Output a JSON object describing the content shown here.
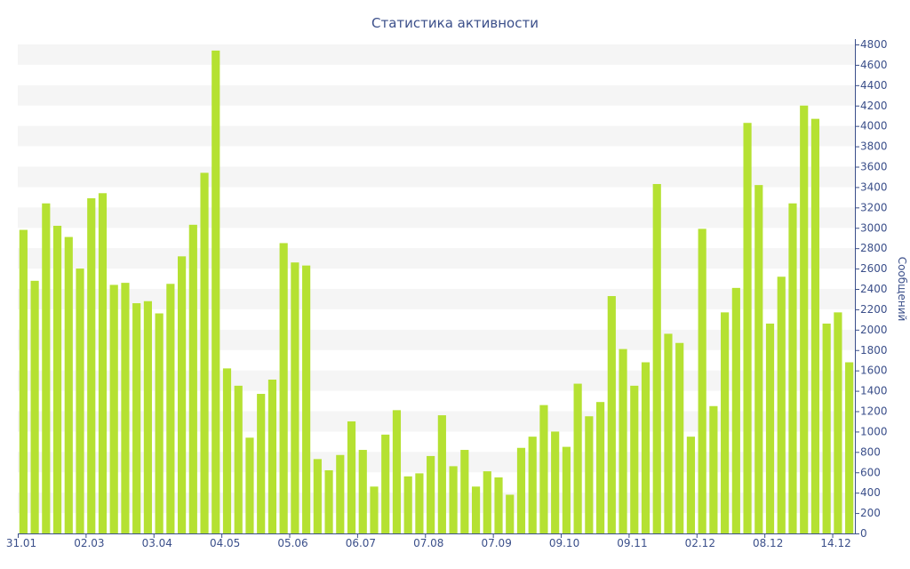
{
  "chart_data": {
    "type": "bar",
    "title": "Статистика активности",
    "ylabel": "Сообщений",
    "xlabel": "",
    "ylim": [
      0,
      4800
    ],
    "y_ticks": [
      0,
      200,
      400,
      600,
      800,
      1000,
      1200,
      1400,
      1600,
      1800,
      2000,
      2200,
      2400,
      2600,
      2800,
      3000,
      3200,
      3400,
      3600,
      3800,
      4000,
      4200,
      4400,
      4600,
      4800
    ],
    "y_axis_position": "right",
    "x_tick_labels": [
      {
        "index": 0,
        "label": "31.01"
      },
      {
        "index": 6,
        "label": "02.03"
      },
      {
        "index": 12,
        "label": "03.04"
      },
      {
        "index": 18,
        "label": "04.05"
      },
      {
        "index": 24,
        "label": "05.06"
      },
      {
        "index": 30,
        "label": "06.07"
      },
      {
        "index": 36,
        "label": "07.08"
      },
      {
        "index": 42,
        "label": "07.09"
      },
      {
        "index": 48,
        "label": "09.10"
      },
      {
        "index": 54,
        "label": "09.11"
      },
      {
        "index": 60,
        "label": "02.12"
      },
      {
        "index": 66,
        "label": "08.12"
      },
      {
        "index": 72,
        "label": "14.12"
      }
    ],
    "values": [
      2980,
      2480,
      3240,
      3020,
      2910,
      2600,
      3290,
      3340,
      2440,
      2460,
      2260,
      2280,
      2160,
      2450,
      2720,
      3030,
      3540,
      4740,
      1620,
      1450,
      940,
      1370,
      1510,
      2850,
      2660,
      2630,
      730,
      620,
      770,
      1100,
      820,
      460,
      970,
      1210,
      560,
      590,
      760,
      1160,
      660,
      820,
      460,
      610,
      550,
      380,
      840,
      950,
      1260,
      1000,
      850,
      1470,
      1150,
      1290,
      2330,
      1810,
      1450,
      1680,
      3430,
      1960,
      1870,
      950,
      2990,
      1250,
      2170,
      2410,
      4030,
      3420,
      2060,
      2520,
      3240,
      4200,
      4070,
      2060,
      2170,
      1680
    ],
    "bar_color": "#b5e132",
    "grid": "alternating horizontal bands",
    "legend": "none"
  }
}
